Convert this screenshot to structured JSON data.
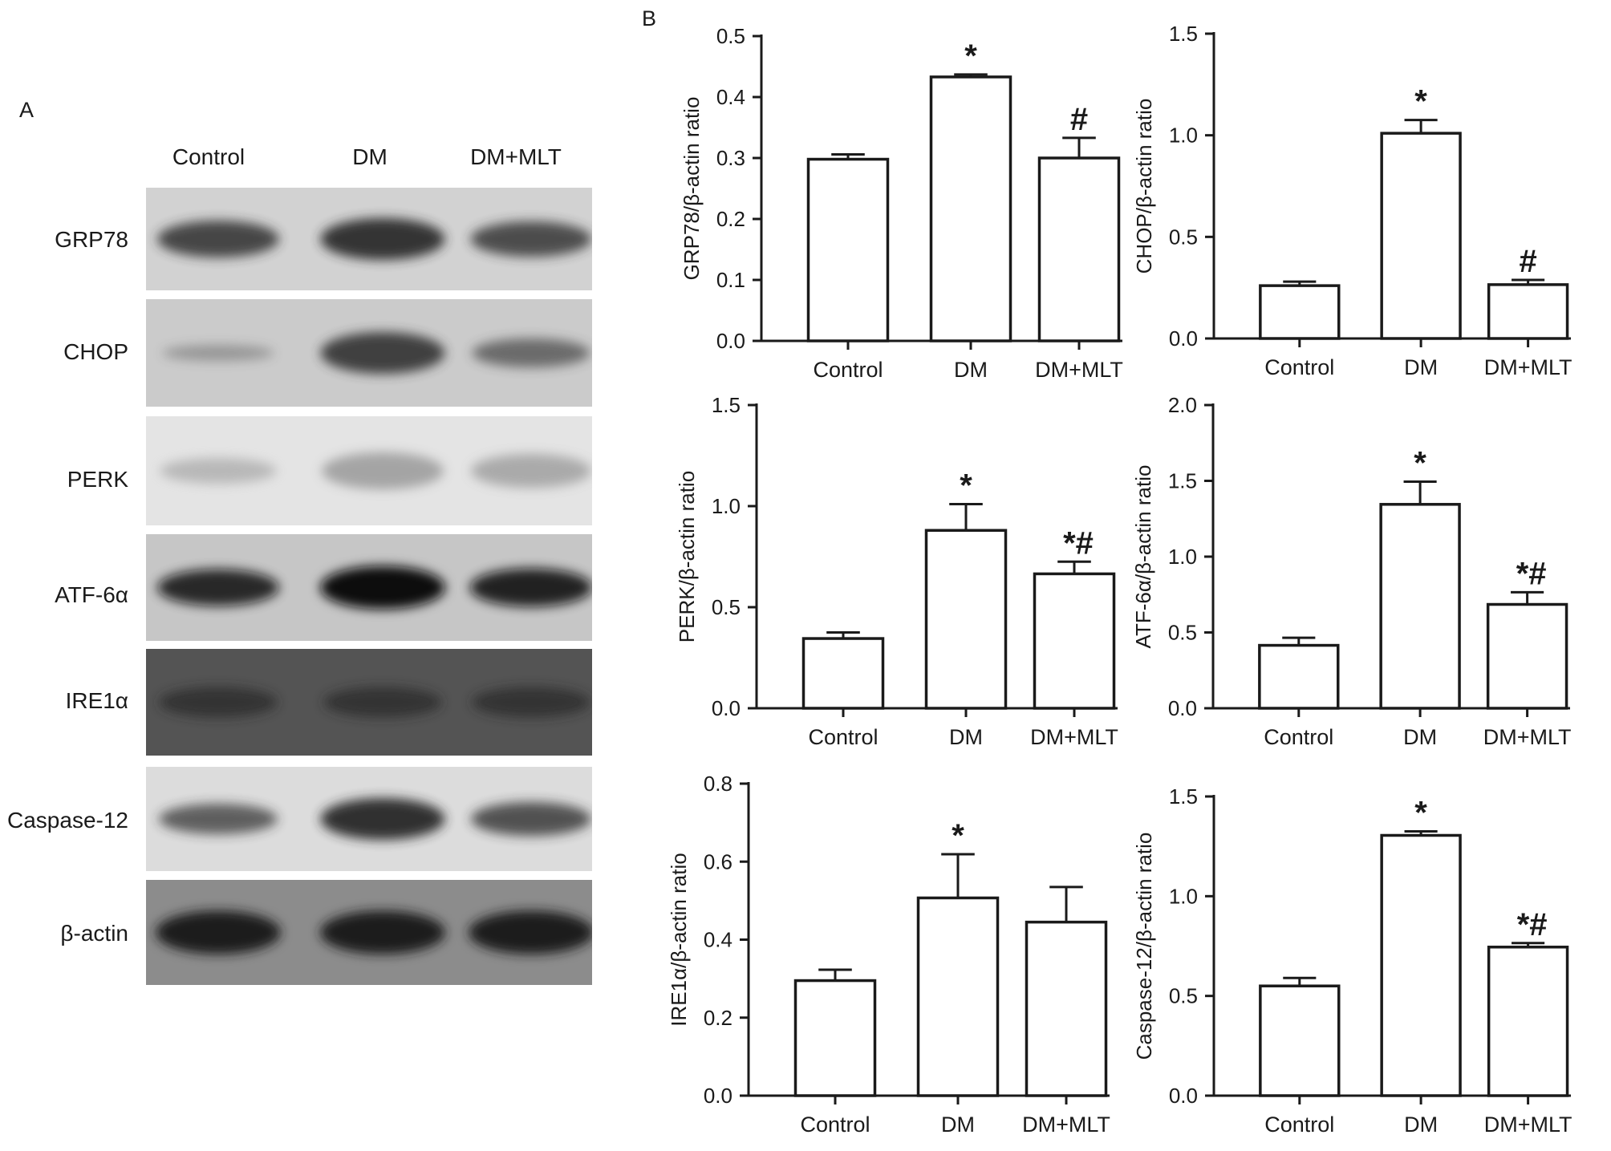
{
  "panel_a": {
    "letter": "A",
    "lanes": [
      "Control",
      "DM",
      "DM+MLT"
    ],
    "rows": [
      {
        "label": "GRP78",
        "bg": "#d2d2d2",
        "band": "#2e2e2e",
        "intensity": [
          0.8,
          0.95,
          0.75
        ]
      },
      {
        "label": "CHOP",
        "bg": "#cbcbcb",
        "band": "#3a3a3a",
        "intensity": [
          0.15,
          0.95,
          0.55
        ]
      },
      {
        "label": "PERK",
        "bg": "#e4e4e4",
        "band": "#9a9a9a",
        "intensity": [
          0.45,
          0.8,
          0.7
        ]
      },
      {
        "label": "ATF-6α",
        "bg": "#c6c6c6",
        "band": "#101010",
        "intensity": [
          0.8,
          1.0,
          0.85
        ]
      },
      {
        "label": "IRE1α",
        "bg": "#545454",
        "band": "#262626",
        "intensity": [
          0.6,
          0.6,
          0.6
        ]
      },
      {
        "label": "Caspase-12",
        "bg": "#dcdcdc",
        "band": "#2a2a2a",
        "intensity": [
          0.6,
          0.95,
          0.7
        ]
      },
      {
        "label": "β-actin",
        "bg": "#8c8c8c",
        "band": "#1c1c1c",
        "intensity": [
          1.0,
          1.0,
          1.0
        ]
      }
    ]
  },
  "panel_b": {
    "letter": "B"
  },
  "chart_data": [
    {
      "type": "bar",
      "categories": [
        "Control",
        "DM",
        "DM+MLT"
      ],
      "values": [
        0.298,
        0.433,
        0.3
      ],
      "errors": [
        0.008,
        0.004,
        0.033
      ],
      "annotations": [
        "",
        "*",
        "#"
      ],
      "ylabel": "GRP78/β-actin ratio",
      "ylim": [
        0,
        0.5
      ],
      "yticks": [
        "0.0",
        "0.1",
        "0.2",
        "0.3",
        "0.4",
        "0.5"
      ]
    },
    {
      "type": "bar",
      "categories": [
        "Control",
        "DM",
        "DM+MLT"
      ],
      "values": [
        0.26,
        1.01,
        0.265
      ],
      "errors": [
        0.02,
        0.065,
        0.023
      ],
      "annotations": [
        "",
        "*",
        "#"
      ],
      "ylabel": "CHOP/β-actin ratio",
      "ylim": [
        0,
        1.5
      ],
      "yticks": [
        "0.0",
        "0.5",
        "1.0",
        "1.5"
      ]
    },
    {
      "type": "bar",
      "categories": [
        "Control",
        "DM",
        "DM+MLT"
      ],
      "values": [
        0.345,
        0.88,
        0.665
      ],
      "errors": [
        0.03,
        0.13,
        0.06
      ],
      "annotations": [
        "",
        "*",
        "*#"
      ],
      "ylabel": "PERK/β-actin ratio",
      "ylim": [
        0,
        1.5
      ],
      "yticks": [
        "0.0",
        "0.5",
        "1.0",
        "1.5"
      ]
    },
    {
      "type": "bar",
      "categories": [
        "Control",
        "DM",
        "DM+MLT"
      ],
      "values": [
        0.415,
        1.345,
        0.685
      ],
      "errors": [
        0.05,
        0.15,
        0.08
      ],
      "annotations": [
        "",
        "*",
        "*#"
      ],
      "ylabel": "ATF-6α/β-actin ratio",
      "ylim": [
        0,
        2.0
      ],
      "yticks": [
        "0.0",
        "0.5",
        "1.0",
        "1.5",
        "2.0"
      ]
    },
    {
      "type": "bar",
      "categories": [
        "Control",
        "DM",
        "DM+MLT"
      ],
      "values": [
        0.295,
        0.507,
        0.445
      ],
      "errors": [
        0.028,
        0.112,
        0.09
      ],
      "annotations": [
        "",
        "*",
        ""
      ],
      "ylabel": "IRE1α/β-actin ratio",
      "ylim": [
        0,
        0.8
      ],
      "yticks": [
        "0.0",
        "0.2",
        "0.4",
        "0.6",
        "0.8"
      ]
    },
    {
      "type": "bar",
      "categories": [
        "Control",
        "DM",
        "DM+MLT"
      ],
      "values": [
        0.55,
        1.305,
        0.745
      ],
      "errors": [
        0.04,
        0.02,
        0.02
      ],
      "annotations": [
        "",
        "*",
        "*#"
      ],
      "ylabel": "Caspase-12/β-actin ratio",
      "ylim": [
        0,
        1.5
      ],
      "yticks": [
        "0.0",
        "0.5",
        "1.0",
        "1.5"
      ]
    }
  ]
}
